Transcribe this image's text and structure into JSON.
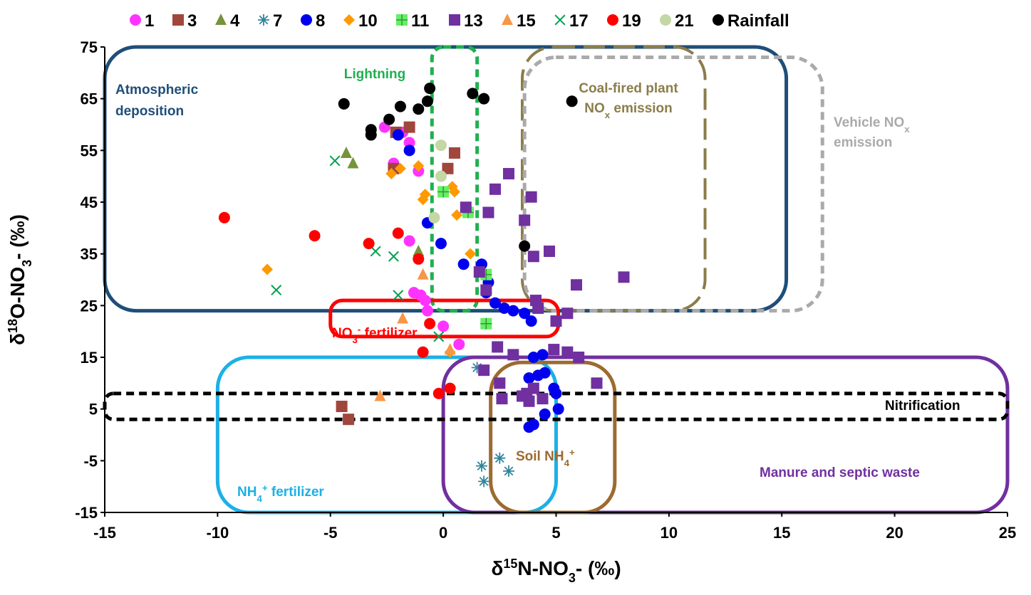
{
  "chart_data": {
    "type": "scatter",
    "title": "",
    "xlabel": {
      "main": "δ",
      "sup": "15",
      "rest": "N-NO",
      "sub": "3",
      "tail": "- (‰)"
    },
    "ylabel": {
      "main": "δ",
      "sup": "18",
      "rest": "O-NO",
      "sub": "3",
      "tail": "- (‰)"
    },
    "xlim": [
      -15,
      25
    ],
    "ylim": [
      -15,
      75
    ],
    "xticks": [
      -15,
      -10,
      -5,
      0,
      5,
      10,
      15,
      20,
      25
    ],
    "yticks": [
      -15,
      -5,
      5,
      15,
      25,
      35,
      45,
      55,
      65,
      75
    ],
    "grid": false,
    "legend_position": "top",
    "regions": [
      {
        "name": "Atmospheric deposition",
        "lines": [
          "Atmospheric",
          "deposition"
        ],
        "x": [
          -15,
          15.2
        ],
        "y": [
          24,
          75
        ],
        "color": "#1f4e79",
        "style": "solid"
      },
      {
        "name": "Lightning",
        "lines": [
          "Lightning"
        ],
        "x": [
          -0.5,
          1.5
        ],
        "y": [
          24,
          75
        ],
        "color": "#1fb04f",
        "style": "dash"
      },
      {
        "name": "Coal-fired plant NOx emission",
        "lines": [
          "Coal-fired plant",
          "NOx emission"
        ],
        "x": [
          3.5,
          11.6
        ],
        "y": [
          24,
          75
        ],
        "color": "#8b7d4a",
        "style": "longdash"
      },
      {
        "name": "Vehicle NOx emission",
        "lines": [
          "Vehicle NOx",
          "emission"
        ],
        "x": [
          3.6,
          16.8
        ],
        "y": [
          24,
          73
        ],
        "color": "#aaaaaa",
        "style": "dash"
      },
      {
        "name": "NO3- fertilizer",
        "lines": [
          "NO3- fertilizer"
        ],
        "x": [
          -5,
          5.1
        ],
        "y": [
          19,
          26
        ],
        "color": "#ff0000",
        "style": "solid"
      },
      {
        "name": "NH4+ fertilizer",
        "lines": [
          "NH4+ fertilizer"
        ],
        "x": [
          -10,
          5
        ],
        "y": [
          -15,
          15
        ],
        "color": "#1cb0e6",
        "style": "solid"
      },
      {
        "name": "Manure and septic waste",
        "lines": [
          "Manure and septic waste"
        ],
        "x": [
          0,
          25
        ],
        "y": [
          -15,
          15
        ],
        "color": "#7030a0",
        "style": "solid"
      },
      {
        "name": "Soil NH4+",
        "lines": [
          "Soil NH4+"
        ],
        "x": [
          2.1,
          7.6
        ],
        "y": [
          -15,
          14
        ],
        "color": "#9c6b30",
        "style": "solid"
      },
      {
        "name": "Nitrification",
        "lines": [
          "Nitrification"
        ],
        "x": [
          -15,
          25
        ],
        "y": [
          3,
          8
        ],
        "color": "#000000",
        "style": "dash"
      }
    ],
    "series": [
      {
        "name": "1",
        "marker": "circle",
        "color": "#ff33ff",
        "x": [
          -2.6,
          -1.8,
          -1.5,
          -2.2,
          -1.1,
          -1.5,
          -1.3,
          -1.0,
          -0.8,
          -0.7,
          0.0,
          0.7
        ],
        "y": [
          59.5,
          58.5,
          56.5,
          52.5,
          51.0,
          37.5,
          27.5,
          27.0,
          26.0,
          24.0,
          21.0,
          17.5
        ]
      },
      {
        "name": "3",
        "marker": "square",
        "color": "#a0463c",
        "x": [
          -1.5,
          -2.1,
          -2.2,
          0.2,
          0.5,
          -4.5,
          -4.2
        ],
        "y": [
          59.5,
          58.5,
          51.5,
          51.5,
          54.5,
          5.5,
          3.0
        ]
      },
      {
        "name": "4",
        "marker": "triangle",
        "color": "#77933c",
        "x": [
          -4.3,
          -4.0,
          -1.1
        ],
        "y": [
          54.5,
          52.5,
          35.5
        ]
      },
      {
        "name": "7",
        "marker": "asterisk",
        "color": "#31859c",
        "x": [
          1.5,
          1.7,
          1.8,
          2.5,
          2.9
        ],
        "y": [
          13.0,
          -6.0,
          -9.0,
          -4.5,
          -7.0
        ]
      },
      {
        "name": "8",
        "marker": "circle",
        "color": "#0000ee",
        "x": [
          -2.0,
          -1.5,
          -0.7,
          -0.1,
          0.9,
          1.7,
          2.0,
          1.9,
          2.3,
          2.7,
          3.1,
          3.6,
          3.9,
          4.0,
          4.4,
          3.8,
          4.2,
          4.5,
          4.9,
          5.0,
          5.1,
          4.5,
          3.8,
          4.0
        ],
        "y": [
          58.0,
          55.0,
          41.0,
          37.0,
          33.0,
          33.0,
          29.5,
          27.5,
          25.5,
          24.5,
          24.0,
          23.5,
          22.0,
          15.0,
          15.5,
          11.0,
          11.5,
          12.0,
          9.0,
          8.0,
          5.0,
          4.0,
          1.5,
          2.0
        ]
      },
      {
        "name": "10",
        "marker": "diamond",
        "color": "#ff9900",
        "x": [
          -7.8,
          -2.3,
          -1.9,
          -1.1,
          -0.9,
          -0.8,
          0.4,
          0.5,
          0.6,
          1.2,
          0.3
        ],
        "y": [
          32.0,
          50.5,
          51.5,
          52.0,
          45.5,
          46.5,
          48.0,
          47.0,
          42.5,
          35.0,
          16.0
        ]
      },
      {
        "name": "11",
        "marker": "square-plus",
        "color": "#66ee66",
        "x": [
          0.0,
          1.1,
          1.9,
          1.9
        ],
        "y": [
          47.0,
          43.0,
          31.0,
          21.5
        ]
      },
      {
        "name": "13",
        "marker": "square",
        "color": "#7030a0",
        "x": [
          1.0,
          1.6,
          2.0,
          2.3,
          2.9,
          3.6,
          3.9,
          4.0,
          4.1,
          4.7,
          4.2,
          5.5,
          5.9,
          8.0,
          1.9,
          2.4,
          2.5,
          2.6,
          3.5,
          3.7,
          3.8,
          4.0,
          4.4,
          4.9,
          5.5,
          6.0,
          6.8,
          3.1,
          1.8,
          5.0
        ],
        "y": [
          44.0,
          31.5,
          43.0,
          47.5,
          50.5,
          41.5,
          46.0,
          34.5,
          26.0,
          35.5,
          24.5,
          23.5,
          29.0,
          30.5,
          28.0,
          17.0,
          10.0,
          7.0,
          7.5,
          8.0,
          6.5,
          9.0,
          7.0,
          16.5,
          16.0,
          15.0,
          10.0,
          15.5,
          12.5,
          22.0
        ]
      },
      {
        "name": "15",
        "marker": "triangle",
        "color": "#f79646",
        "x": [
          -1.8,
          -0.9,
          -2.8,
          0.3
        ],
        "y": [
          22.5,
          31.0,
          7.5,
          16.5
        ]
      },
      {
        "name": "17",
        "marker": "x",
        "color": "#00a050",
        "x": [
          -4.8,
          -7.4,
          -3.0,
          -2.2,
          -2.0,
          -0.2
        ],
        "y": [
          53.0,
          28.0,
          35.5,
          34.5,
          27.0,
          19.0
        ]
      },
      {
        "name": "19",
        "marker": "circle",
        "color": "#ff0000",
        "x": [
          -9.7,
          -5.7,
          -3.3,
          -2.0,
          -1.1,
          -0.6,
          -0.9,
          -0.2,
          0.3
        ],
        "y": [
          42.0,
          38.5,
          37.0,
          39.0,
          34.0,
          21.5,
          16.0,
          8.0,
          9.0
        ]
      },
      {
        "name": "21",
        "marker": "circle",
        "color": "#c4d7a4",
        "x": [
          -0.1,
          -0.1,
          -0.4
        ],
        "y": [
          56.0,
          50.0,
          42.0
        ]
      },
      {
        "name": "Rainfall",
        "marker": "circle",
        "color": "#000000",
        "x": [
          -4.4,
          -3.2,
          -3.2,
          -2.4,
          -1.9,
          -1.1,
          -0.7,
          -0.6,
          1.3,
          1.8,
          5.7,
          3.6
        ],
        "y": [
          64.0,
          59.0,
          58.0,
          61.0,
          63.5,
          63.0,
          64.5,
          67.0,
          66.0,
          65.0,
          64.5,
          36.5
        ]
      }
    ]
  }
}
